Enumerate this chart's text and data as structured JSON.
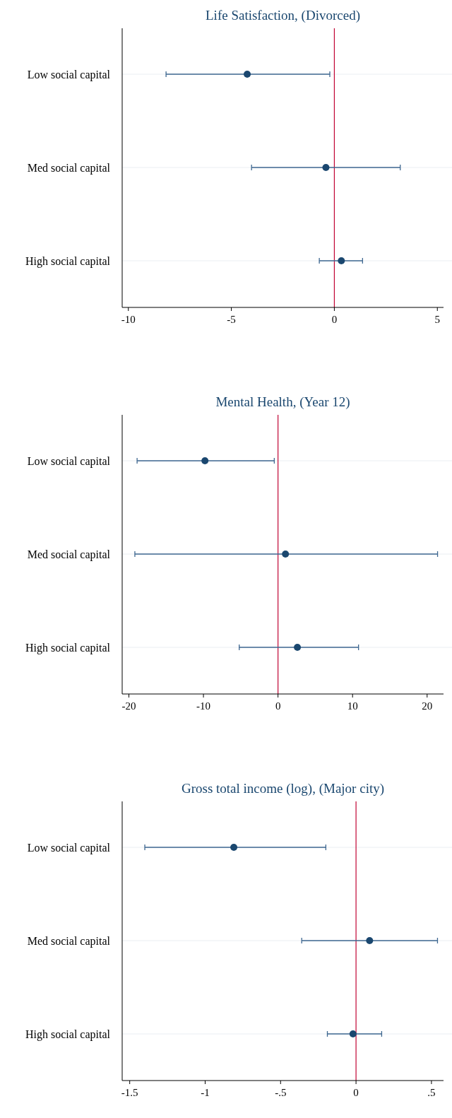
{
  "chart_data": [
    {
      "type": "scatter",
      "orientation": "horizontal",
      "title": "Life Satisfaction, (Divorced)",
      "categories": [
        "Low social capital",
        "Med social capital",
        "High social capital"
      ],
      "values": [
        -4.23,
        -0.41,
        0.34
      ],
      "errors": [
        [
          -8.17,
          -0.22
        ],
        [
          -4.02,
          3.2
        ],
        [
          -0.73,
          1.37
        ]
      ],
      "color": "#1a476f",
      "marker": "circle",
      "grid": "y",
      "xlim": [
        -10.3,
        5.3
      ],
      "xticks": [
        -10,
        -5,
        0,
        5
      ],
      "ref_lines": [
        {
          "axis": "x",
          "value": 0,
          "color": "#c10534"
        }
      ]
    },
    {
      "type": "scatter",
      "orientation": "horizontal",
      "title": "Mental Health, (Year 12)",
      "categories": [
        "Low social capital",
        "Med social capital",
        "High social capital"
      ],
      "values": [
        -9.8,
        1.0,
        2.6
      ],
      "errors": [
        [
          -18.9,
          -0.5
        ],
        [
          -19.2,
          21.4
        ],
        [
          -5.2,
          10.8
        ]
      ],
      "color": "#1a476f",
      "marker": "circle",
      "grid": "y",
      "xlim": [
        -20.9,
        22.2
      ],
      "xticks": [
        -20,
        -10,
        0,
        10,
        20
      ],
      "ref_lines": [
        {
          "axis": "x",
          "value": 0,
          "color": "#c10534"
        }
      ]
    },
    {
      "type": "scatter",
      "orientation": "horizontal",
      "title": "Gross total income (log), (Major city)",
      "categories": [
        "Low social capital",
        "Med social capital",
        "High social capital"
      ],
      "values": [
        -0.81,
        0.09,
        -0.02
      ],
      "errors": [
        [
          -1.4,
          -0.2
        ],
        [
          -0.36,
          0.54
        ],
        [
          -0.19,
          0.17
        ]
      ],
      "color": "#1a476f",
      "marker": "circle",
      "grid": "y",
      "xlim": [
        -1.55,
        0.58
      ],
      "xticks": [
        -1.5,
        -1,
        {
          "value": -0.5,
          "label": "-.5"
        },
        0,
        {
          "value": 0.5,
          "label": ".5"
        }
      ],
      "ref_lines": [
        {
          "axis": "x",
          "value": 0,
          "color": "#c10534"
        }
      ]
    }
  ]
}
